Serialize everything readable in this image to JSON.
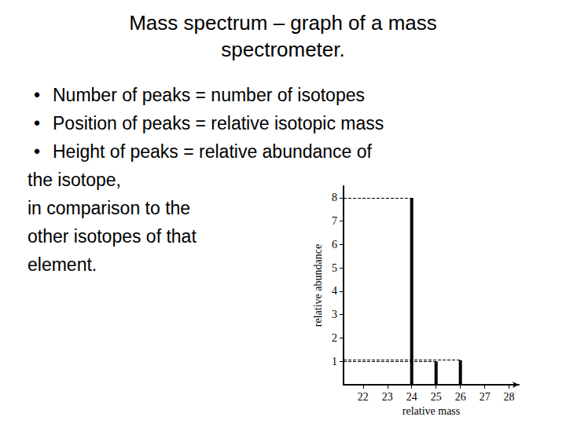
{
  "title": "Mass spectrum – graph of a mass spectrometer.",
  "bullets": [
    [
      "Number of peaks = number of isotopes"
    ],
    [
      "Position of peaks = relative isotopic mass"
    ],
    [
      "Height of peaks = relative abundance of",
      "the isotope,",
      "in comparison to the",
      "other isotopes of that",
      "element."
    ]
  ],
  "chart_data": {
    "type": "bar",
    "x_label": "relative mass",
    "y_label": "relative abundance",
    "x": [
      24,
      25,
      26
    ],
    "values": [
      8,
      1,
      1.05
    ],
    "color": "#000000",
    "xlim": [
      21.2,
      28.4
    ],
    "xticks": [
      22,
      23,
      24,
      25,
      26,
      27,
      28
    ],
    "ylim": [
      0,
      8.5
    ],
    "yticks": [
      1,
      2,
      3,
      4,
      5,
      6,
      7,
      8
    ],
    "grid": false
  }
}
